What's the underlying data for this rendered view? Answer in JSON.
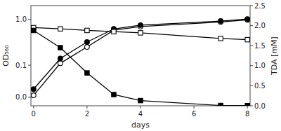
{
  "chart_data": {
    "type": "line",
    "x": [
      0,
      1,
      2,
      3,
      4,
      7,
      8
    ],
    "series": [
      {
        "color": "#000000",
        "marker": "open-circle",
        "values": [
          0.022,
          0.11,
          0.25,
          0.58,
          0.7,
          0.88,
          0.98
        ]
      },
      {
        "color": "#000000",
        "marker": "circle",
        "values": [
          0.03,
          0.14,
          0.32,
          0.62,
          0.75,
          0.92,
          1.02
        ]
      },
      {
        "color": "#000000",
        "marker": "open-square",
        "axis": "y2",
        "values": [
          1.95,
          1.92,
          1.88,
          1.85,
          1.82,
          1.68,
          1.65
        ]
      },
      {
        "color": "#000000",
        "marker": "square",
        "axis": "y2",
        "values": [
          1.88,
          1.45,
          0.82,
          0.28,
          0.13,
          0.008,
          0.005
        ],
        "errors": [
          0.0,
          0.0,
          0.0,
          0.0,
          0.05,
          0.0,
          0.0
        ]
      }
    ],
    "x_label": "days",
    "y_label": "OD₅₆₀",
    "y2_label": "TDA [mM]",
    "log": "y",
    "grid": false,
    "xlim": [
      -0.1,
      8.1
    ],
    "xticks": [
      0,
      2,
      4,
      6,
      8
    ],
    "ylim": [
      0.013,
      2.0
    ],
    "yticks": [
      {
        "value": 0.02,
        "label": "0.0"
      },
      0.1,
      {
        "value": 1.0,
        "label": "1.0"
      }
    ],
    "y2lim": [
      0.0,
      2.5
    ],
    "y2ticks": [
      {
        "value": 0.0,
        "label": "0.0"
      },
      0.5,
      {
        "value": 1.0,
        "label": "1.0"
      },
      1.5,
      {
        "value": 2.0,
        "label": "2.0"
      },
      2.5
    ]
  }
}
